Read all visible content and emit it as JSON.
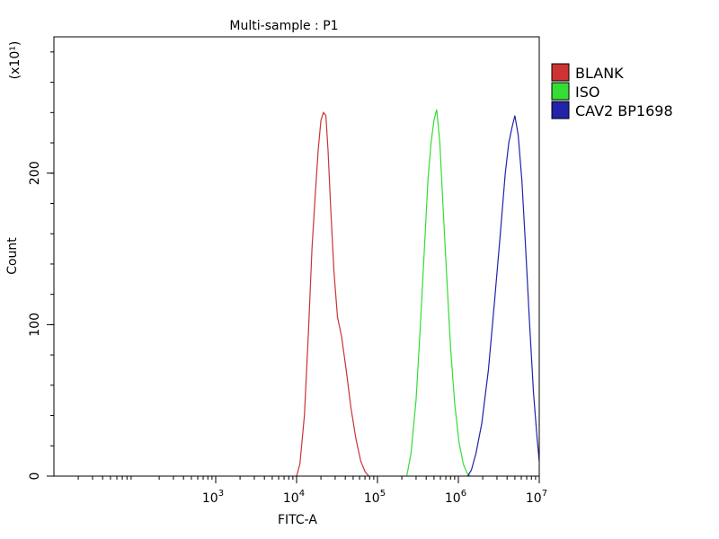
{
  "chart_data": {
    "type": "line",
    "title": "Multi-sample : P1",
    "xlabel": "FITC-A",
    "ylabel": "Count",
    "y_multiplier_label": "(x10¹)",
    "x_scale": "log",
    "xlim": [
      10,
      10000000
    ],
    "ylim": [
      0,
      29
    ],
    "x_ticks": [
      {
        "value": 1000,
        "base": "10",
        "exp": "3"
      },
      {
        "value": 10000,
        "base": "10",
        "exp": "4"
      },
      {
        "value": 100000,
        "base": "10",
        "exp": "5"
      },
      {
        "value": 1000000,
        "base": "10",
        "exp": "6"
      },
      {
        "value": 10000000,
        "base": "10",
        "exp": "7"
      }
    ],
    "y_ticks": [
      {
        "value": 0,
        "label": "0"
      },
      {
        "value": 10,
        "label": "100"
      },
      {
        "value": 20,
        "label": "200"
      }
    ],
    "grid": false,
    "legend_position": "top-right",
    "series": [
      {
        "name": "BLANK",
        "color": "#cc3333",
        "points": [
          [
            10000,
            0
          ],
          [
            11000,
            0.8
          ],
          [
            12500,
            4
          ],
          [
            14000,
            9.5
          ],
          [
            15500,
            15
          ],
          [
            17000,
            18.5
          ],
          [
            18500,
            21.5
          ],
          [
            20000,
            23.5
          ],
          [
            21500,
            24
          ],
          [
            23000,
            23.8
          ],
          [
            24500,
            21.5
          ],
          [
            26500,
            17.5
          ],
          [
            29000,
            13.5
          ],
          [
            32000,
            10.5
          ],
          [
            36000,
            9.2
          ],
          [
            41000,
            7
          ],
          [
            47000,
            4.5
          ],
          [
            54000,
            2.5
          ],
          [
            62000,
            1
          ],
          [
            70000,
            0.3
          ],
          [
            78000,
            0
          ]
        ]
      },
      {
        "name": "ISO",
        "color": "#33dd33",
        "points": [
          [
            230000,
            0
          ],
          [
            260000,
            1.5
          ],
          [
            300000,
            5
          ],
          [
            340000,
            10
          ],
          [
            380000,
            15
          ],
          [
            420000,
            19.5
          ],
          [
            460000,
            22
          ],
          [
            500000,
            23.5
          ],
          [
            540000,
            24.2
          ],
          [
            590000,
            22
          ],
          [
            650000,
            17.5
          ],
          [
            720000,
            13
          ],
          [
            800000,
            8.5
          ],
          [
            900000,
            4.8
          ],
          [
            1020000,
            2.2
          ],
          [
            1150000,
            0.8
          ],
          [
            1280000,
            0.2
          ],
          [
            1400000,
            0
          ]
        ]
      },
      {
        "name": "CAV2 BP1698",
        "color": "#2222aa",
        "points": [
          [
            1300000,
            0
          ],
          [
            1450000,
            0.4
          ],
          [
            1650000,
            1.5
          ],
          [
            1950000,
            3.5
          ],
          [
            2350000,
            7
          ],
          [
            2800000,
            11.5
          ],
          [
            3300000,
            16
          ],
          [
            3800000,
            20
          ],
          [
            4200000,
            22
          ],
          [
            4600000,
            23
          ],
          [
            5000000,
            23.8
          ],
          [
            5500000,
            22.5
          ],
          [
            6100000,
            19.5
          ],
          [
            6800000,
            15
          ],
          [
            7600000,
            10
          ],
          [
            8500000,
            5.5
          ],
          [
            9400000,
            2.5
          ],
          [
            10000000,
            1
          ]
        ]
      }
    ]
  }
}
